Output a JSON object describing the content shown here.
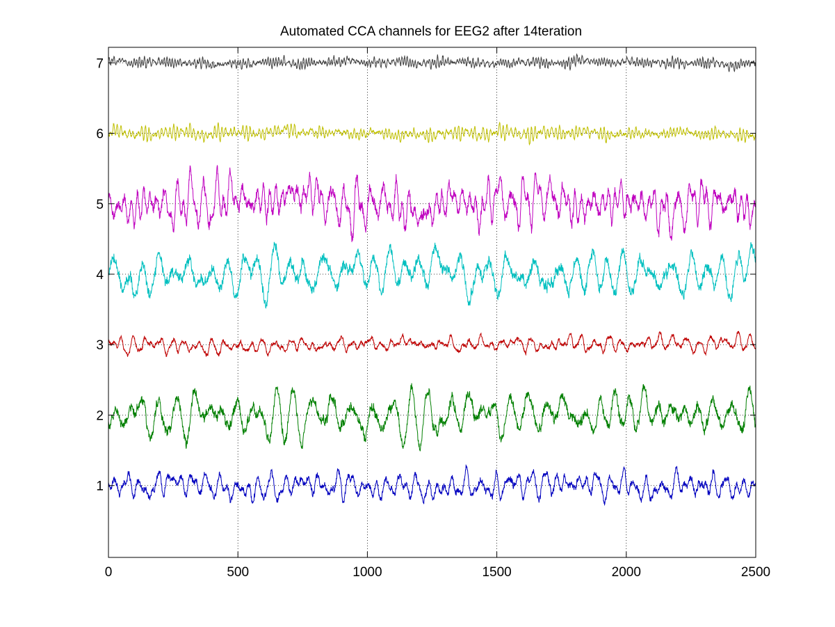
{
  "chart_data": {
    "type": "line",
    "title": "Automated CCA channels for EEG2 after  14teration",
    "xlim": [
      0,
      2500
    ],
    "x_ticks": [
      0,
      500,
      1000,
      1500,
      2000,
      2500
    ],
    "ylim": [
      -0.02,
      7.22
    ],
    "grid": "dotted, on tick positions",
    "legend": "none",
    "channels": [
      {
        "label": "1",
        "offset": 1,
        "color": "#0000bf",
        "amplitude": 0.18,
        "dominant_period": 43
      },
      {
        "label": "2",
        "offset": 2,
        "color": "#007f00",
        "amplitude": 0.32,
        "dominant_period": 48
      },
      {
        "label": "3",
        "offset": 3,
        "color": "#bf0000",
        "amplitude": 0.12,
        "dominant_period": 38
      },
      {
        "label": "4",
        "offset": 4,
        "color": "#00bfbf",
        "amplitude": 0.3,
        "dominant_period": 60
      },
      {
        "label": "5",
        "offset": 5,
        "color": "#bf00bf",
        "amplitude": 0.34,
        "dominant_period": 30
      },
      {
        "label": "6",
        "offset": 6,
        "color": "#bfbf00",
        "amplitude": 0.1,
        "dominant_period": 20
      },
      {
        "label": "7",
        "offset": 7,
        "color": "#404040",
        "amplitude": 0.08,
        "dominant_period": 14
      }
    ]
  }
}
